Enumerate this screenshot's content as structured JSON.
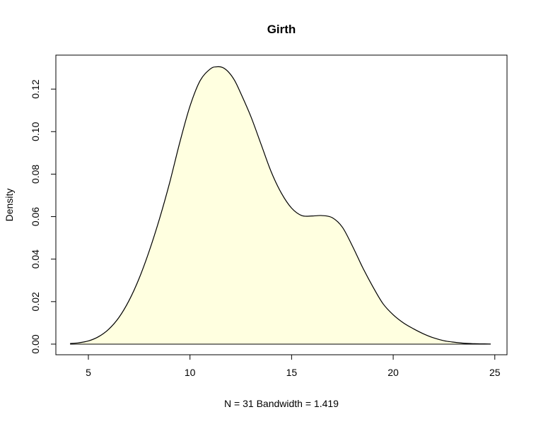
{
  "chart_data": {
    "type": "area",
    "title": "Girth",
    "xlabel": "N = 31   Bandwidth = 1.419",
    "ylabel": "Density",
    "xlim": [
      3.4,
      25.6
    ],
    "ylim": [
      -0.005,
      0.136
    ],
    "x_ticks": [
      5,
      10,
      15,
      20,
      25
    ],
    "y_ticks": [
      0.0,
      0.02,
      0.04,
      0.06,
      0.08,
      0.1,
      0.12
    ],
    "x_tick_labels": [
      "5",
      "10",
      "15",
      "20",
      "25"
    ],
    "y_tick_labels": [
      "0.00",
      "0.02",
      "0.04",
      "0.06",
      "0.08",
      "0.10",
      "0.12"
    ],
    "grid": false,
    "fill_color": "#FFFFE0",
    "line_color": "#000000",
    "baseline_color": "#000000",
    "series": [
      {
        "x": [
          4.1,
          4.5,
          5.0,
          5.5,
          6.0,
          6.5,
          7.0,
          7.5,
          8.0,
          8.5,
          9.0,
          9.5,
          10.0,
          10.5,
          11.0,
          11.3,
          11.6,
          11.9,
          12.2,
          12.5,
          13.0,
          13.5,
          14.0,
          14.5,
          15.0,
          15.5,
          16.0,
          16.5,
          17.0,
          17.5,
          18.0,
          18.5,
          19.0,
          19.5,
          20.0,
          20.5,
          21.0,
          21.5,
          22.0,
          22.5,
          23.0,
          23.5,
          24.0,
          24.5,
          24.8
        ],
        "y": [
          0.0003,
          0.0006,
          0.0015,
          0.0035,
          0.007,
          0.0125,
          0.0205,
          0.031,
          0.044,
          0.059,
          0.076,
          0.095,
          0.112,
          0.124,
          0.1295,
          0.1305,
          0.1302,
          0.128,
          0.124,
          0.118,
          0.107,
          0.094,
          0.081,
          0.071,
          0.064,
          0.0605,
          0.0603,
          0.0605,
          0.0595,
          0.055,
          0.046,
          0.036,
          0.027,
          0.019,
          0.0138,
          0.01,
          0.0072,
          0.0048,
          0.0029,
          0.0016,
          0.0009,
          0.0004,
          0.0002,
          0.0001,
          5e-05
        ]
      }
    ]
  }
}
